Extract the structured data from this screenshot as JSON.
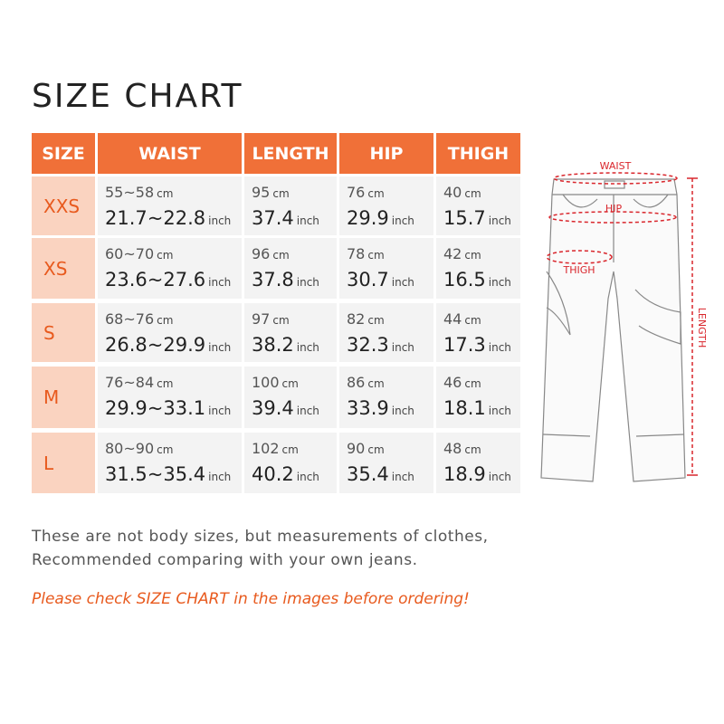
{
  "header": {
    "title": "SIZE CHART"
  },
  "table": {
    "columns": [
      "SIZE",
      "WAIST",
      "LENGTH",
      "HIP",
      "THIGH"
    ],
    "units": {
      "metric": "cm",
      "imperial": "inch"
    },
    "rows": [
      {
        "size": "XXS",
        "cells": [
          [
            "55~58",
            "21.7~22.8"
          ],
          [
            "95",
            "37.4"
          ],
          [
            "76",
            "29.9"
          ],
          [
            "40",
            "15.7"
          ]
        ]
      },
      {
        "size": "XS",
        "cells": [
          [
            "60~70",
            "23.6~27.6"
          ],
          [
            "96",
            "37.8"
          ],
          [
            "78",
            "30.7"
          ],
          [
            "42",
            "16.5"
          ]
        ]
      },
      {
        "size": "S",
        "cells": [
          [
            "68~76",
            "26.8~29.9"
          ],
          [
            "97",
            "38.2"
          ],
          [
            "82",
            "32.3"
          ],
          [
            "44",
            "17.3"
          ]
        ]
      },
      {
        "size": "M",
        "cells": [
          [
            "76~84",
            "29.9~33.1"
          ],
          [
            "100",
            "39.4"
          ],
          [
            "86",
            "33.9"
          ],
          [
            "46",
            "18.1"
          ]
        ]
      },
      {
        "size": "L",
        "cells": [
          [
            "80~90",
            "31.5~35.4"
          ],
          [
            "102",
            "40.2"
          ],
          [
            "90",
            "35.4"
          ],
          [
            "48",
            "18.9"
          ]
        ]
      }
    ]
  },
  "notes": [
    "These are not body sizes, but measurements of clothes,",
    "Recommended comparing with your own jeans."
  ],
  "warning": "Please check SIZE CHART in the images before ordering!",
  "diagram": {
    "labels": {
      "waist": "WAIST",
      "hip": "HIP",
      "thigh": "THIGH",
      "length": "LENGTH"
    }
  }
}
